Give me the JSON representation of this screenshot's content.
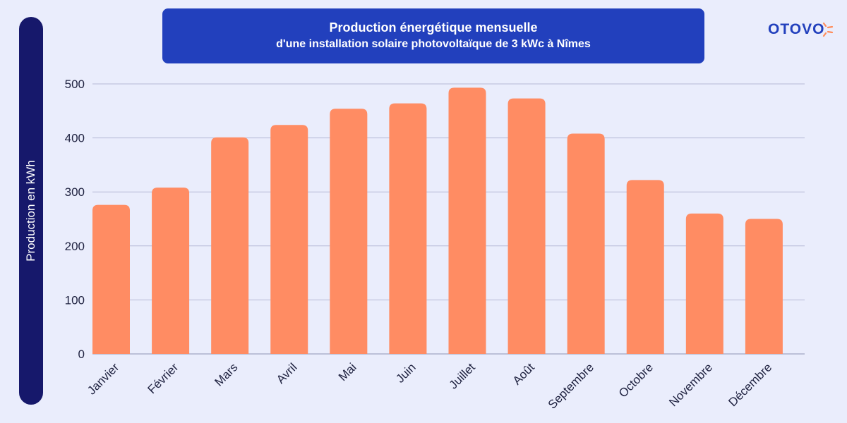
{
  "title": {
    "line1": "Production énergétique mensuelle",
    "line2": "d'une installation solaire photovoltaïque de 3 kWc à Nîmes"
  },
  "brand": {
    "name": "OTOVO",
    "color": "#2240bd",
    "accent": "#ff8c5a"
  },
  "colors": {
    "bar": "#ff8c63",
    "grid": "#b6b9d6",
    "axis_bar": "#16186b",
    "title_bg": "#2240bd",
    "background": "#eaedfc"
  },
  "chart_data": {
    "type": "bar",
    "ylabel": "Production en kWh",
    "xlabel": "",
    "ylim": [
      0,
      500
    ],
    "yticks": [
      0,
      100,
      200,
      300,
      400,
      500
    ],
    "grid": true,
    "categories": [
      "Janvier",
      "Février",
      "Mars",
      "Avril",
      "Mai",
      "Juin",
      "Juillet",
      "Août",
      "Septembre",
      "Octobre",
      "Novembre",
      "Décembre"
    ],
    "values": [
      276,
      308,
      401,
      424,
      454,
      464,
      493,
      473,
      408,
      322,
      260,
      250
    ]
  }
}
